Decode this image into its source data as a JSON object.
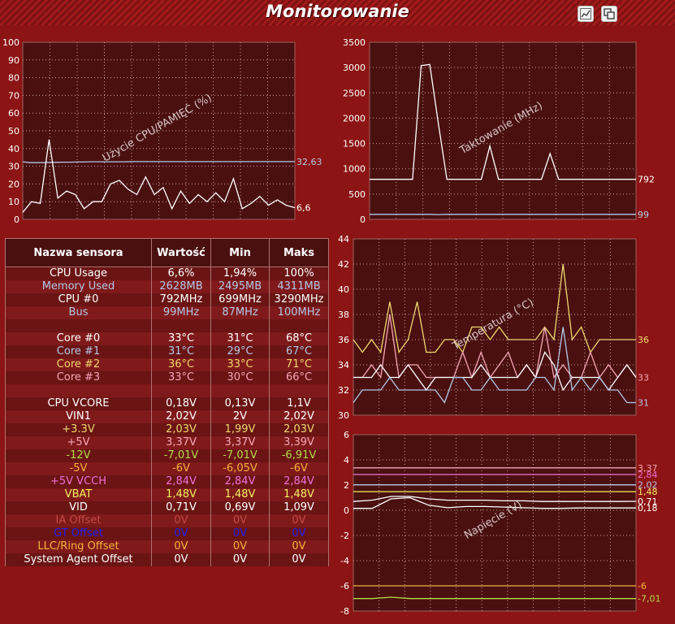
{
  "window": {
    "title": "Monitorowanie",
    "icons": [
      "chart-line-icon",
      "window-restore-icon"
    ]
  },
  "colors": {
    "background": "#8c1414",
    "plot_background": "#4a1010",
    "white": "#ffffff",
    "light_blue": "#b4c8e8",
    "yellow": "#f0d870",
    "pink": "#f4a6b6",
    "green": "#b4dc4a",
    "orange": "#f4b43c",
    "magenta": "#f070d8",
    "light_yellow": "#f2f060",
    "dim_red": "#c44848",
    "blue": "#2020ee"
  },
  "sensor_table": {
    "headers": [
      "Nazwa sensora",
      "Wartość",
      "Min",
      "Maks"
    ],
    "rows": [
      {
        "name": "CPU Usage",
        "value": "6,6%",
        "min": "1,94%",
        "max": "100%",
        "color": "#ffffff"
      },
      {
        "name": "Memory Used",
        "value": "2628MB",
        "min": "2495MB",
        "max": "4311MB",
        "color": "#b4c8e8"
      },
      {
        "name": "CPU #0",
        "value": "792MHz",
        "min": "699MHz",
        "max": "3290MHz",
        "color": "#ffffff"
      },
      {
        "name": "Bus",
        "value": "99MHz",
        "min": "87MHz",
        "max": "100MHz",
        "color": "#b4c8e8"
      },
      {
        "name": "",
        "value": "",
        "min": "",
        "max": "",
        "color": "#ffffff"
      },
      {
        "name": "Core #0",
        "value": "33°C",
        "min": "31°C",
        "max": "68°C",
        "color": "#ffffff"
      },
      {
        "name": "Core #1",
        "value": "31°C",
        "min": "29°C",
        "max": "67°C",
        "color": "#b4c8e8"
      },
      {
        "name": "Core #2",
        "value": "36°C",
        "min": "33°C",
        "max": "71°C",
        "color": "#f0d870"
      },
      {
        "name": "Core #3",
        "value": "33°C",
        "min": "30°C",
        "max": "66°C",
        "color": "#f4a6b6"
      },
      {
        "name": "",
        "value": "",
        "min": "",
        "max": "",
        "color": "#ffffff"
      },
      {
        "name": "CPU VCORE",
        "value": "0,18V",
        "min": "0,13V",
        "max": "1,1V",
        "color": "#ffffff"
      },
      {
        "name": "VIN1",
        "value": "2,02V",
        "min": "2V",
        "max": "2,02V",
        "color": "#ffffff"
      },
      {
        "name": "+3.3V",
        "value": "2,03V",
        "min": "1,99V",
        "max": "2,03V",
        "color": "#f0d870"
      },
      {
        "name": "+5V",
        "value": "3,37V",
        "min": "3,37V",
        "max": "3,39V",
        "color": "#f4a6b6"
      },
      {
        "name": "-12V",
        "value": "-7,01V",
        "min": "-7,01V",
        "max": "-6,91V",
        "color": "#b4dc4a"
      },
      {
        "name": "-5V",
        "value": "-6V",
        "min": "-6,05V",
        "max": "-6V",
        "color": "#f4b43c"
      },
      {
        "name": "+5V VCCH",
        "value": "2,84V",
        "min": "2,84V",
        "max": "2,84V",
        "color": "#f070d8"
      },
      {
        "name": "VBAT",
        "value": "1,48V",
        "min": "1,48V",
        "max": "1,48V",
        "color": "#f2f060"
      },
      {
        "name": "VID",
        "value": "0,71V",
        "min": "0,69V",
        "max": "1,09V",
        "color": "#ffffff"
      },
      {
        "name": "IA Offset",
        "value": "0V",
        "min": "0V",
        "max": "0V",
        "color": "#c44848"
      },
      {
        "name": "GT Offset",
        "value": "0V",
        "min": "0V",
        "max": "0V",
        "color": "#2020ee"
      },
      {
        "name": "LLC/Ring Offset",
        "value": "0V",
        "min": "0V",
        "max": "0V",
        "color": "#f4b43c"
      },
      {
        "name": "System Agent Offset",
        "value": "0V",
        "min": "0V",
        "max": "0V",
        "color": "#ffffff"
      }
    ]
  },
  "chart_data": [
    {
      "type": "line",
      "id": "cpu-memory",
      "title": "Użycie CPU/PAMIĘĆ (%)",
      "ylim": [
        0,
        100
      ],
      "yticks": [
        0,
        10,
        20,
        30,
        40,
        50,
        60,
        70,
        80,
        90,
        100
      ],
      "grid": true,
      "series": [
        {
          "color": "#b4c8e8",
          "last_label": "32,63",
          "values": [
            32.5,
            32,
            32,
            32,
            32.2,
            32.2,
            32.3,
            32.3,
            32.4,
            32.4,
            32.5,
            32.5,
            32.5,
            32.5,
            32.5,
            32.5,
            32.6,
            32.6,
            32.6,
            32.6,
            32.6,
            32.6,
            32.6,
            32.6,
            32.6,
            32.6,
            32.6,
            32.6,
            32.6,
            32.6,
            32.6,
            32.6,
            32.6,
            32.6,
            32.6,
            32.6,
            32.6,
            32.6,
            32.6,
            32.6,
            32.63
          ]
        },
        {
          "color": "#ffffff",
          "last_label": "6,6",
          "values": [
            4,
            10,
            9,
            45,
            12,
            16,
            14,
            6,
            10,
            10,
            20,
            22,
            17,
            14,
            24,
            14,
            18,
            6,
            16,
            9,
            14,
            10,
            15,
            10,
            23,
            6,
            9,
            13,
            8,
            11,
            8,
            6.6
          ]
        }
      ]
    },
    {
      "type": "line",
      "id": "clock",
      "title": "Taktowanie (MHz)",
      "ylim": [
        0,
        3500
      ],
      "yticks": [
        0,
        500,
        1000,
        1500,
        2000,
        2500,
        3000,
        3500
      ],
      "grid": true,
      "series": [
        {
          "color": "#ffffff",
          "last_label": "792",
          "values": [
            792,
            792,
            792,
            792,
            792,
            792,
            3040,
            3060,
            1900,
            792,
            792,
            792,
            792,
            792,
            1450,
            792,
            792,
            792,
            792,
            792,
            792,
            1300,
            792,
            792,
            792,
            792,
            792,
            792,
            792,
            792,
            792,
            792
          ]
        },
        {
          "color": "#b4c8e8",
          "last_label": "99",
          "values": [
            99,
            99,
            99,
            99,
            99,
            99,
            99,
            99,
            95,
            99,
            99,
            99,
            99,
            99,
            99,
            99,
            99,
            99,
            99,
            99,
            99,
            99,
            99,
            99,
            99,
            99,
            99,
            99,
            99,
            99,
            99,
            99
          ]
        }
      ]
    },
    {
      "type": "line",
      "id": "temperature",
      "title": "Temperatura (°C)",
      "ylim": [
        30,
        44
      ],
      "yticks": [
        30,
        32,
        34,
        36,
        38,
        40,
        42,
        44
      ],
      "grid": true,
      "series": [
        {
          "color": "#f0d870",
          "last_label": "36",
          "values": [
            36,
            35,
            36,
            35,
            39,
            35,
            36,
            39,
            35,
            35,
            36,
            36,
            35,
            37,
            37,
            36,
            37,
            36,
            36,
            36,
            36,
            37,
            36,
            42,
            36,
            37,
            35,
            36,
            36,
            36,
            36,
            36
          ]
        },
        {
          "color": "#f4a6b6",
          "last_label": "33",
          "values": [
            33,
            33,
            34,
            33,
            38,
            33,
            34,
            34,
            33,
            33,
            33,
            33,
            35,
            33,
            35,
            33,
            34,
            35,
            33,
            34,
            33,
            37,
            33,
            34,
            33,
            33,
            35,
            33,
            34,
            33,
            34,
            33
          ]
        },
        {
          "color": "#ffffff",
          "values": [
            33,
            33,
            33,
            34,
            33,
            33,
            34,
            33,
            32,
            33,
            33,
            33,
            33,
            33,
            34,
            33,
            33,
            33,
            33,
            34,
            33,
            35,
            34,
            32,
            33,
            33,
            33,
            33,
            32,
            33,
            34,
            33
          ]
        },
        {
          "color": "#b4c8e8",
          "last_label": "31",
          "values": [
            31,
            32,
            32,
            32,
            33,
            32,
            32,
            32,
            32,
            32,
            31,
            33,
            33,
            32,
            32,
            33,
            32,
            32,
            32,
            32,
            33,
            33,
            32,
            37,
            32,
            33,
            32,
            33,
            32,
            32,
            31,
            31
          ]
        }
      ]
    },
    {
      "type": "line",
      "id": "voltage",
      "title": "Napięcie (V)",
      "ylim": [
        -8,
        6
      ],
      "yticks": [
        -8,
        -6,
        -4,
        -2,
        0,
        2,
        4,
        6
      ],
      "grid": true,
      "series": [
        {
          "color": "#f4a6b6",
          "last_label": "3,37",
          "values": [
            3.37,
            3.37,
            3.37,
            3.37,
            3.37,
            3.37,
            3.37,
            3.37,
            3.37,
            3.37,
            3.37,
            3.37,
            3.37,
            3.37,
            3.37,
            3.37
          ]
        },
        {
          "color": "#f070d8",
          "last_label": "2,84",
          "values": [
            2.84,
            2.84,
            2.84,
            2.84,
            2.84,
            2.84,
            2.84,
            2.84,
            2.84,
            2.84,
            2.84,
            2.84,
            2.84,
            2.84,
            2.84,
            2.84
          ]
        },
        {
          "color": "#b4c8e8",
          "last_label": "2,02",
          "values": [
            2.02,
            2.02,
            2.02,
            2.02,
            2.02,
            2.02,
            2.02,
            2.02,
            2.02,
            2.02,
            2.02,
            2.02,
            2.02,
            2.02,
            2.02,
            2.02
          ]
        },
        {
          "color": "#f2f060",
          "last_label": "1,48",
          "values": [
            1.48,
            1.48,
            1.48,
            1.48,
            1.48,
            1.48,
            1.48,
            1.48,
            1.48,
            1.48,
            1.48,
            1.48,
            1.48,
            1.48,
            1.48,
            1.48
          ]
        },
        {
          "color": "#ffffff",
          "last_label": "0,71",
          "values": [
            0.7,
            0.8,
            1.1,
            1.1,
            0.9,
            0.8,
            0.8,
            0.8,
            0.75,
            0.75,
            0.7,
            0.7,
            0.7,
            0.7,
            0.7,
            0.71
          ]
        },
        {
          "color": "#ffffff",
          "last_label": "0,18",
          "values": [
            0.15,
            0.15,
            0.9,
            1.0,
            0.4,
            0.2,
            0.3,
            0.3,
            0.25,
            0.2,
            0.15,
            0.15,
            0.18,
            0.18,
            0.18,
            0.18
          ]
        },
        {
          "color": "#f4b43c",
          "last_label": "-6",
          "values": [
            -6,
            -6,
            -6,
            -6,
            -6,
            -6,
            -6,
            -6,
            -6,
            -6,
            -6,
            -6,
            -6,
            -6,
            -6,
            -6
          ]
        },
        {
          "color": "#b4dc4a",
          "last_label": "-7,01",
          "values": [
            -7.01,
            -7.01,
            -6.9,
            -7.01,
            -7.01,
            -7.01,
            -7.01,
            -7.01,
            -7.01,
            -7.01,
            -7.01,
            -7.01,
            -7.01,
            -7.01,
            -7.01,
            -7.01
          ]
        }
      ]
    }
  ]
}
